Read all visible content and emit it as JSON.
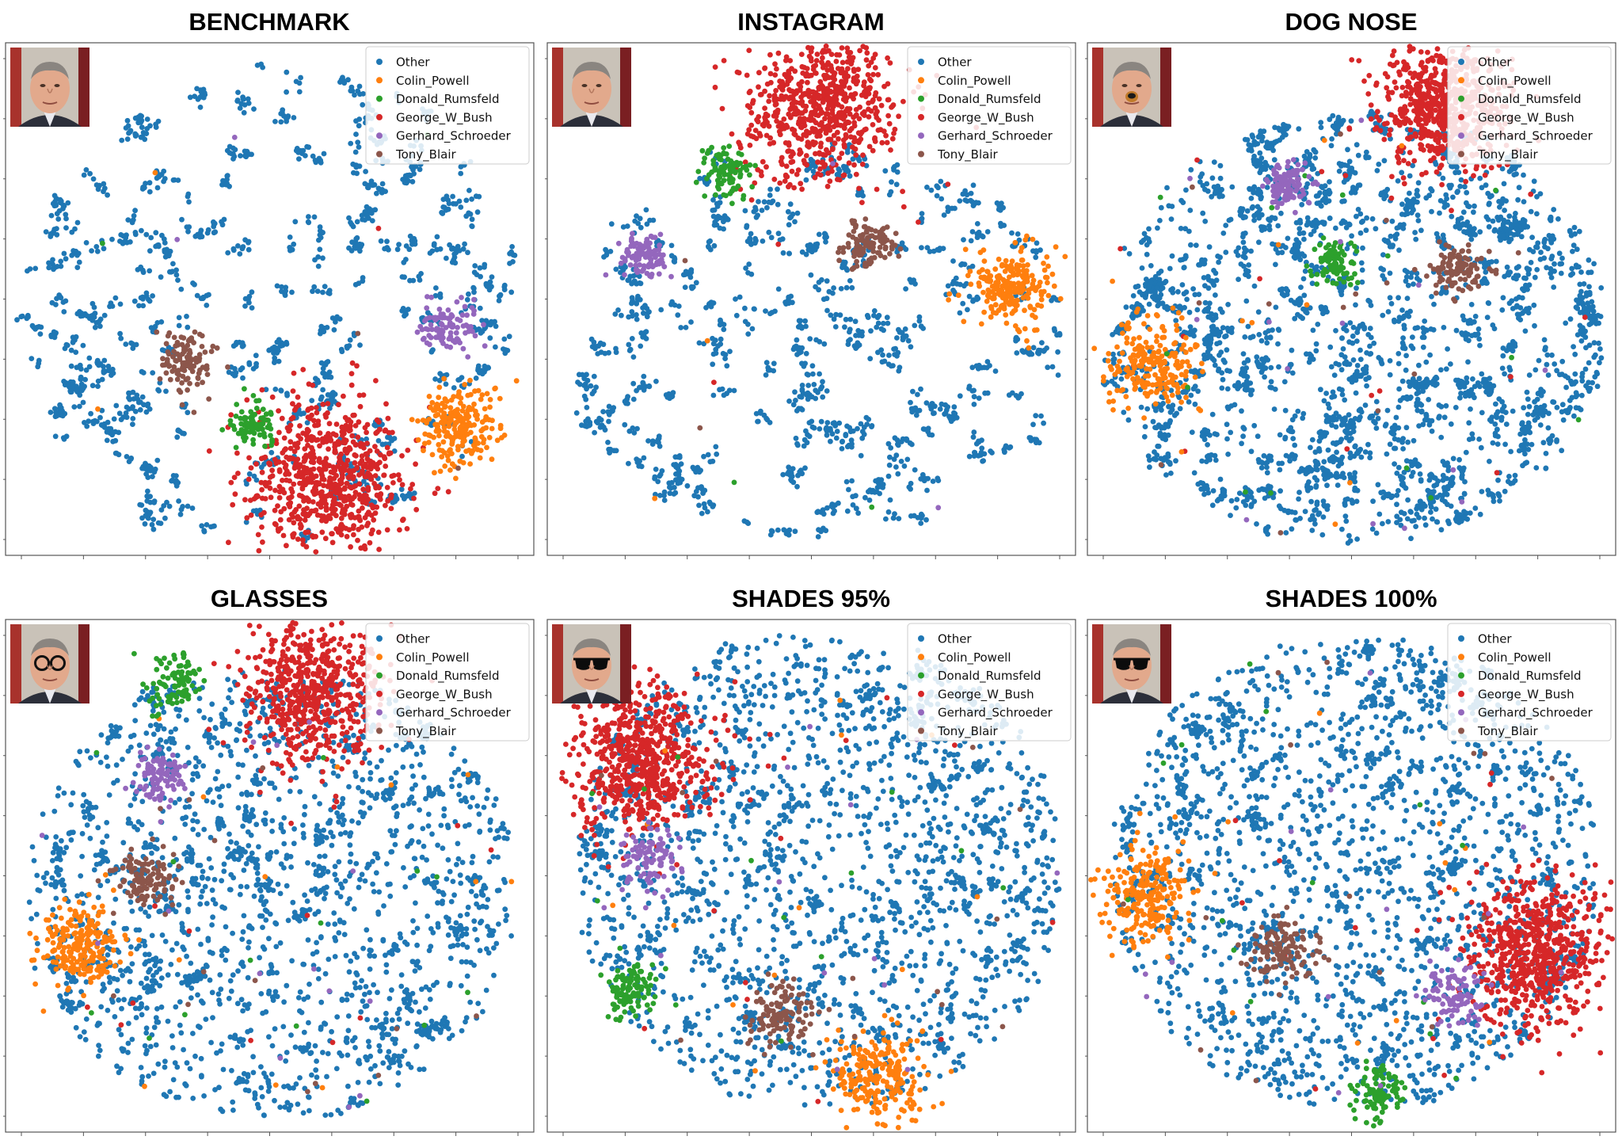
{
  "colors": {
    "Other": "#1f77b4",
    "Colin_Powell": "#ff7f0e",
    "Donald_Rumsfeld": "#2ca02c",
    "George_W_Bush": "#d62728",
    "Gerhard_Schroeder": "#9467bd",
    "Tony_Blair": "#8c564b"
  },
  "chart_data": [
    {
      "type": "scatter",
      "title": "BENCHMARK",
      "portrait": "plain",
      "xlim": [
        0,
        100
      ],
      "ylim": [
        0,
        100
      ],
      "legend": [
        "Other",
        "Colin_Powell",
        "Donald_Rumsfeld",
        "George_W_Bush",
        "Gerhard_Schroeder",
        "Tony_Blair"
      ],
      "legend_position": "top-right",
      "other_style": "islands",
      "clusters": [
        {
          "name": "George_W_Bush",
          "x": 61,
          "y": 15,
          "spread": 7,
          "count": 700
        },
        {
          "name": "Colin_Powell",
          "x": 85.5,
          "y": 25,
          "spread": 3.6,
          "count": 220
        },
        {
          "name": "Donald_Rumsfeld",
          "x": 47,
          "y": 26,
          "spread": 2.3,
          "count": 90
        },
        {
          "name": "Gerhard_Schroeder",
          "x": 84,
          "y": 44,
          "spread": 2.5,
          "count": 100
        },
        {
          "name": "Tony_Blair",
          "x": 34.5,
          "y": 38,
          "spread": 2.8,
          "count": 110
        }
      ],
      "other_region": {
        "x": [
          3,
          97
        ],
        "y": [
          2,
          96
        ],
        "count": 220
      }
    },
    {
      "type": "scatter",
      "title": "INSTAGRAM",
      "portrait": "plain",
      "xlim": [
        0,
        100
      ],
      "ylim": [
        0,
        100
      ],
      "legend": [
        "Other",
        "Colin_Powell",
        "Donald_Rumsfeld",
        "George_W_Bush",
        "Gerhard_Schroeder",
        "Tony_Blair"
      ],
      "legend_position": "top-right",
      "other_style": "islands",
      "clusters": [
        {
          "name": "George_W_Bush",
          "x": 52,
          "y": 87,
          "spread": 7,
          "count": 700
        },
        {
          "name": "Colin_Powell",
          "x": 88,
          "y": 52,
          "spread": 3.5,
          "count": 220
        },
        {
          "name": "Donald_Rumsfeld",
          "x": 34,
          "y": 75,
          "spread": 2.3,
          "count": 90
        },
        {
          "name": "Gerhard_Schroeder",
          "x": 18.5,
          "y": 58,
          "spread": 2.3,
          "count": 100
        },
        {
          "name": "Tony_Blair",
          "x": 61,
          "y": 61,
          "spread": 2.5,
          "count": 110
        }
      ],
      "other_region": {
        "x": [
          4,
          97
        ],
        "y": [
          3,
          80
        ],
        "count": 200
      }
    },
    {
      "type": "scatter",
      "title": "DOG NOSE",
      "portrait": "dog_nose",
      "xlim": [
        0,
        100
      ],
      "ylim": [
        0,
        100
      ],
      "legend": [
        "Other",
        "Colin_Powell",
        "Donald_Rumsfeld",
        "George_W_Bush",
        "Gerhard_Schroeder",
        "Tony_Blair"
      ],
      "legend_position": "top-right",
      "other_style": "mixed",
      "clusters": [
        {
          "name": "George_W_Bush",
          "x": 67,
          "y": 88,
          "spread": 6,
          "count": 650
        },
        {
          "name": "Colin_Powell",
          "x": 12,
          "y": 37,
          "spread": 4,
          "count": 220
        },
        {
          "name": "Donald_Rumsfeld",
          "x": 46.5,
          "y": 57.5,
          "spread": 2.2,
          "count": 90
        },
        {
          "name": "Gerhard_Schroeder",
          "x": 38,
          "y": 72,
          "spread": 2.3,
          "count": 100
        },
        {
          "name": "Tony_Blair",
          "x": 70,
          "y": 56,
          "spread": 2.5,
          "count": 110
        }
      ],
      "other_region": {
        "x": [
          4,
          97
        ],
        "y": [
          3,
          86
        ],
        "count": 280
      }
    },
    {
      "type": "scatter",
      "title": "GLASSES",
      "portrait": "glasses",
      "xlim": [
        0,
        100
      ],
      "ylim": [
        0,
        100
      ],
      "legend": [
        "Other",
        "Colin_Powell",
        "Donald_Rumsfeld",
        "George_W_Bush",
        "Gerhard_Schroeder",
        "Tony_Blair"
      ],
      "legend_position": "top-right",
      "other_style": "dense",
      "clusters": [
        {
          "name": "George_W_Bush",
          "x": 58,
          "y": 86,
          "spread": 6.5,
          "count": 600
        },
        {
          "name": "Colin_Powell",
          "x": 14,
          "y": 36,
          "spread": 3.8,
          "count": 220
        },
        {
          "name": "Donald_Rumsfeld",
          "x": 32,
          "y": 88,
          "spread": 2.5,
          "count": 90
        },
        {
          "name": "Gerhard_Schroeder",
          "x": 29.5,
          "y": 69,
          "spread": 2.4,
          "count": 100
        },
        {
          "name": "Tony_Blair",
          "x": 27,
          "y": 49,
          "spread": 2.6,
          "count": 110
        }
      ],
      "other_region": {
        "x": [
          4,
          96
        ],
        "y": [
          3,
          90
        ],
        "count": 1400
      }
    },
    {
      "type": "scatter",
      "title": "SHADES 95%",
      "portrait": "shades",
      "xlim": [
        0,
        100
      ],
      "ylim": [
        0,
        100
      ],
      "legend": [
        "Other",
        "Colin_Powell",
        "Donald_Rumsfeld",
        "George_W_Bush",
        "Gerhard_Schroeder",
        "Tony_Blair"
      ],
      "legend_position": "top-right",
      "other_style": "dense",
      "clusters": [
        {
          "name": "George_W_Bush",
          "x": 18,
          "y": 73,
          "spread": 6.5,
          "count": 650
        },
        {
          "name": "Colin_Powell",
          "x": 63,
          "y": 11,
          "spread": 4.4,
          "count": 230
        },
        {
          "name": "Donald_Rumsfeld",
          "x": 16,
          "y": 28,
          "spread": 2.5,
          "count": 100
        },
        {
          "name": "Gerhard_Schroeder",
          "x": 20,
          "y": 53,
          "spread": 3,
          "count": 100
        },
        {
          "name": "Tony_Blair",
          "x": 44,
          "y": 23,
          "spread": 3,
          "count": 120
        }
      ],
      "other_region": {
        "x": [
          6,
          97
        ],
        "y": [
          5,
          97
        ],
        "count": 1500
      }
    },
    {
      "type": "scatter",
      "title": "SHADES 100%",
      "portrait": "shades",
      "xlim": [
        0,
        100
      ],
      "ylim": [
        0,
        100
      ],
      "legend": [
        "Other",
        "Colin_Powell",
        "Donald_Rumsfeld",
        "George_W_Bush",
        "Gerhard_Schroeder",
        "Tony_Blair"
      ],
      "legend_position": "top-right",
      "other_style": "dense",
      "clusters": [
        {
          "name": "George_W_Bush",
          "x": 85,
          "y": 35,
          "spread": 6.5,
          "count": 650
        },
        {
          "name": "Colin_Powell",
          "x": 11,
          "y": 46,
          "spread": 4.2,
          "count": 230
        },
        {
          "name": "Donald_Rumsfeld",
          "x": 55,
          "y": 8,
          "spread": 2.5,
          "count": 100
        },
        {
          "name": "Gerhard_Schroeder",
          "x": 70,
          "y": 27,
          "spread": 2.8,
          "count": 100
        },
        {
          "name": "Tony_Blair",
          "x": 37,
          "y": 35,
          "spread": 3,
          "count": 120
        }
      ],
      "other_region": {
        "x": [
          5,
          96
        ],
        "y": [
          5,
          96
        ],
        "count": 1600
      }
    }
  ]
}
